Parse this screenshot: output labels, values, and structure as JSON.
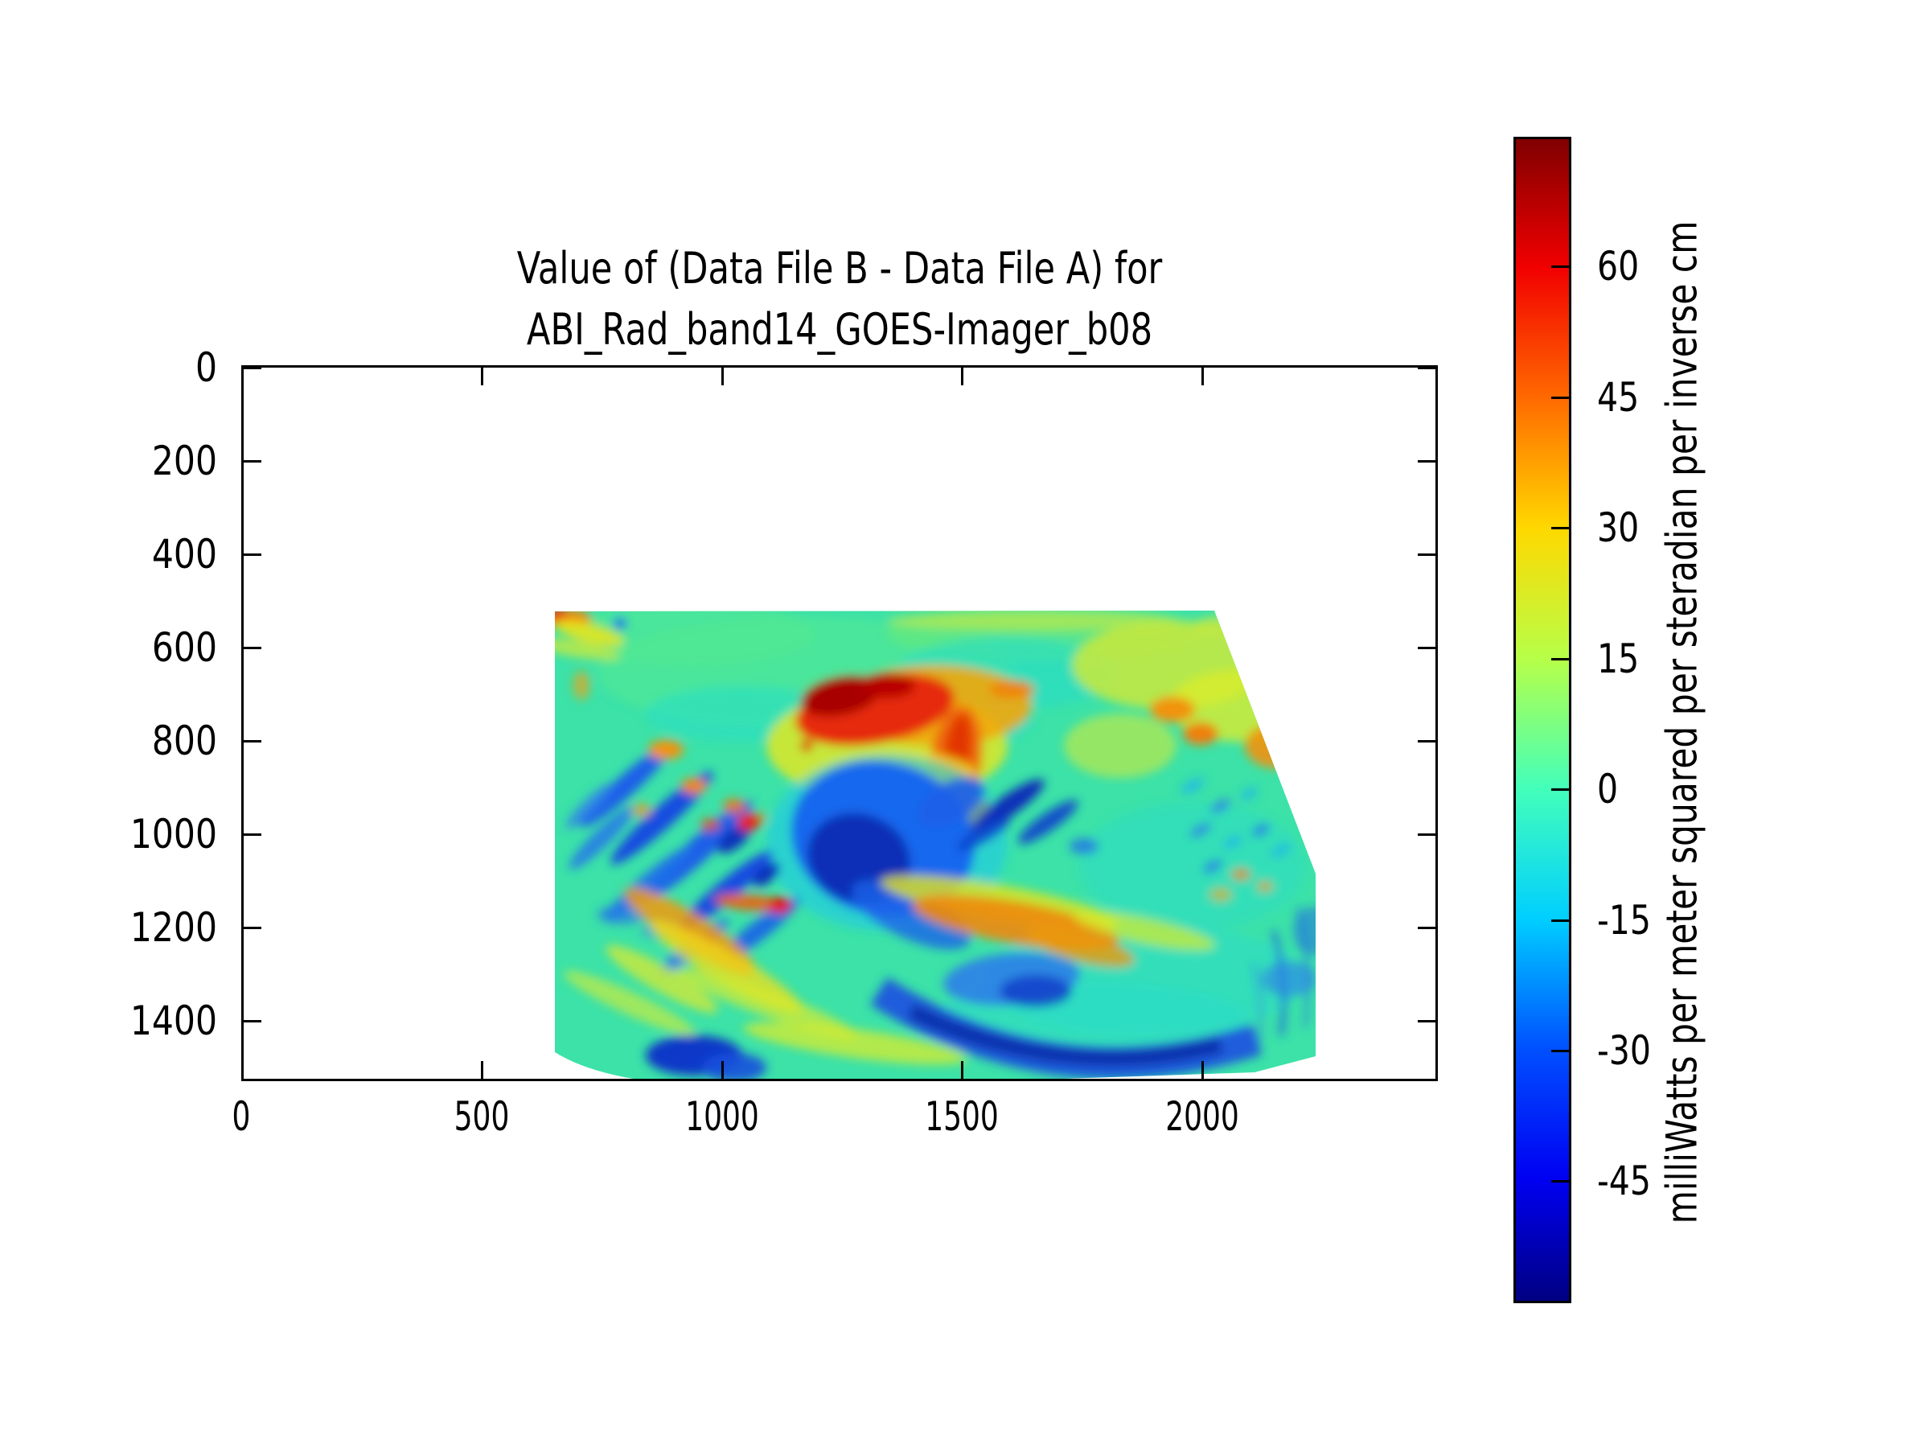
{
  "figure": {
    "title_line1": "Value of (Data File B - Data File A) for",
    "title_line2": "ABI_Rad_band14_GOES-Imager_b08",
    "background_color": "#ffffff"
  },
  "chart_data": {
    "type": "heatmap",
    "title": "Value of (Data File B - Data File A) for ABI_Rad_band14_GOES-Imager_b08",
    "xlabel": "",
    "ylabel": "",
    "x_ticks": [
      "0",
      "500",
      "1000",
      "1500",
      "2000"
    ],
    "y_ticks": [
      "0",
      "200",
      "400",
      "600",
      "800",
      "1000",
      "1200",
      "1400"
    ],
    "xlim": [
      0,
      2490
    ],
    "ylim_top_to_bottom": [
      0,
      1530
    ],
    "y_axis_inverted": true,
    "grid": false,
    "colormap": "jet",
    "colorbar": {
      "ticks": [
        "60",
        "45",
        "30",
        "15",
        "0",
        "-15",
        "-30",
        "-45"
      ],
      "label": "milliWatts per meter squared per steradian per inverse cm",
      "vmax_estimate": 74.9,
      "vmin_estimate": -59.0,
      "top_color": "#800000",
      "bottom_color": "#000082"
    },
    "data_region": {
      "description": "Quadrilateral swath of difference values; white (no data) elsewhere",
      "corners_data_coords": [
        {
          "x": 650,
          "y": 510
        },
        {
          "x": 2025,
          "y": 508
        },
        {
          "x": 2238,
          "y": 1080
        },
        {
          "x": 2238,
          "y": 1470
        },
        {
          "x": 893,
          "y": 1528
        },
        {
          "x": 650,
          "y": 1462
        }
      ],
      "background_value": "near 0 (green, approx -5 to +8)"
    },
    "features": [
      {
        "desc": "strong positive anomaly cluster (dark red core)",
        "x": 1340,
        "y": 720,
        "value": "+55 to +75"
      },
      {
        "desc": "orange positive streak trailing SE of red cluster",
        "x": 1480,
        "y": 900,
        "value": "+40 to +55"
      },
      {
        "desc": "large negative anomaly mass (deep blue)",
        "x": 1350,
        "y": 1000,
        "value": "-35 to -58"
      },
      {
        "desc": "parallel negative (blue) slashes, NE-SW oriented",
        "x": 900,
        "y": 1100,
        "value": "-25 to -45"
      },
      {
        "desc": "small red spot amid slashes",
        "x": 1050,
        "y": 975,
        "value": "+55"
      },
      {
        "desc": "orange/yellow diagonal bands lower-left",
        "x": 1000,
        "y": 1250,
        "value": "+25 to +45"
      },
      {
        "desc": "orange band bottom-center",
        "x": 1600,
        "y": 1190,
        "value": "+35 to +45"
      },
      {
        "desc": "curved negative (blue) arc along bottom",
        "x": 1450,
        "y": 1400,
        "value": "-30 to -50"
      },
      {
        "desc": "mottled yellow positive region upper-right",
        "x": 1850,
        "y": 770,
        "value": "+15 to +35"
      },
      {
        "desc": "orange/red speck cluster at NW corner of swath",
        "x": 680,
        "y": 520,
        "value": "+40 to +60"
      }
    ]
  },
  "layout_note": "matplotlib-style figure, ticks point inward on all four spines and on colorbar right edge"
}
